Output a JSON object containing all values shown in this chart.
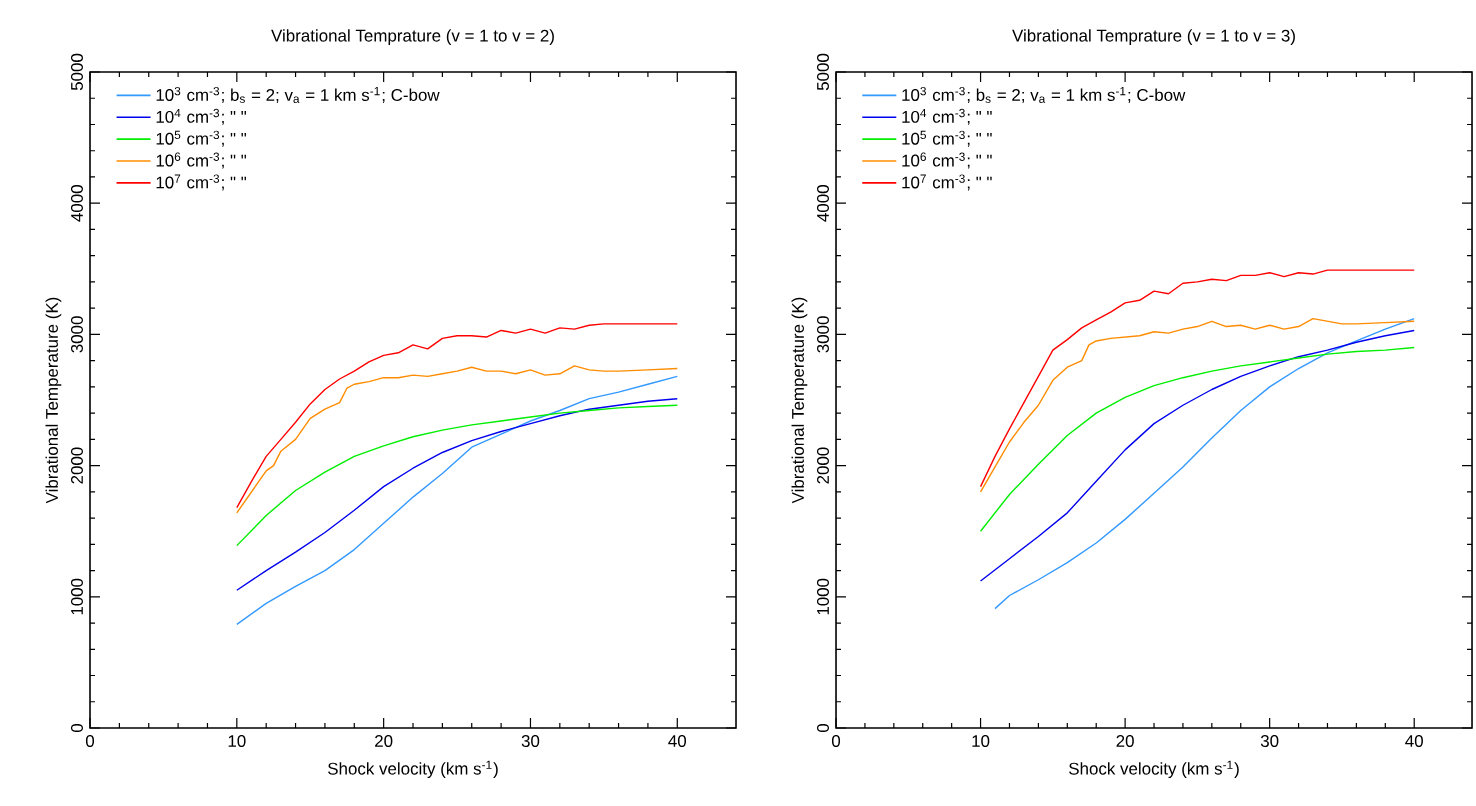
{
  "chart_data": [
    {
      "type": "line",
      "title": "Vibrational Temprature (v = 1 to v = 2)",
      "xlabel": "Shock velocity (km s$^{-1}$)",
      "ylabel": "Vibrational Temperature (K)",
      "xlim": [
        0,
        44
      ],
      "ylim": [
        0,
        5000
      ],
      "xticks": [
        0,
        10,
        20,
        30,
        40
      ],
      "yticks": [
        0,
        1000,
        2000,
        3000,
        4000,
        5000
      ],
      "legend": "top left",
      "series": [
        {
          "name": "10$^{3}$ cm$^{-3}$; b$_{s}$ = 2; v$_{a}$ = 1 km s$^{-1}$; C-bow",
          "color": "#3399ff",
          "x": [
            10,
            12,
            14,
            16,
            18,
            20,
            22,
            24,
            26,
            28,
            30,
            32,
            34,
            36,
            38,
            40
          ],
          "values": [
            790,
            950,
            1080,
            1200,
            1360,
            1560,
            1760,
            1940,
            2140,
            2240,
            2340,
            2420,
            2510,
            2560,
            2620,
            2680
          ]
        },
        {
          "name": "10$^{4}$ cm$^{-3}$; \"          \"",
          "color": "#0000ee",
          "x": [
            10,
            12,
            14,
            16,
            18,
            20,
            22,
            24,
            26,
            28,
            30,
            32,
            34,
            36,
            38,
            40
          ],
          "values": [
            1050,
            1200,
            1340,
            1490,
            1660,
            1840,
            1980,
            2100,
            2190,
            2260,
            2320,
            2380,
            2430,
            2460,
            2490,
            2510
          ]
        },
        {
          "name": "10$^{5}$ cm$^{-3}$; \"          \"",
          "color": "#00ee00",
          "x": [
            10,
            12,
            14,
            16,
            18,
            20,
            22,
            24,
            26,
            28,
            30,
            32,
            34,
            36,
            38,
            40
          ],
          "values": [
            1390,
            1620,
            1810,
            1950,
            2070,
            2150,
            2220,
            2270,
            2310,
            2340,
            2370,
            2400,
            2420,
            2440,
            2450,
            2460
          ]
        },
        {
          "name": "10$^{6}$ cm$^{-3}$; \"          \"",
          "color": "#ff8c00",
          "x": [
            10,
            11,
            12,
            12.5,
            13,
            14,
            15,
            16,
            17,
            17.5,
            18,
            19,
            20,
            21,
            22,
            23,
            24,
            25,
            26,
            27,
            28,
            29,
            30,
            31,
            32,
            33,
            34,
            35,
            36,
            38,
            40
          ],
          "values": [
            1640,
            1800,
            1960,
            2000,
            2110,
            2200,
            2360,
            2430,
            2480,
            2590,
            2620,
            2640,
            2670,
            2670,
            2690,
            2680,
            2700,
            2720,
            2750,
            2720,
            2720,
            2700,
            2730,
            2690,
            2700,
            2760,
            2730,
            2720,
            2720,
            2730,
            2740
          ]
        },
        {
          "name": "10$^{7}$ cm$^{-3}$; \"          \"",
          "color": "#ff0000",
          "x": [
            10,
            11,
            12,
            13,
            14,
            15,
            16,
            17,
            18,
            19,
            20,
            21,
            22,
            23,
            24,
            25,
            26,
            27,
            28,
            29,
            30,
            31,
            32,
            33,
            34,
            35,
            40
          ],
          "values": [
            1680,
            1880,
            2070,
            2200,
            2330,
            2470,
            2580,
            2660,
            2720,
            2790,
            2840,
            2860,
            2920,
            2890,
            2970,
            2990,
            2990,
            2980,
            3030,
            3010,
            3040,
            3010,
            3050,
            3040,
            3070,
            3080,
            3080
          ]
        }
      ]
    },
    {
      "type": "line",
      "title": "Vibrational Temprature (v = 1 to v = 3)",
      "xlabel": "Shock velocity (km s$^{-1}$)",
      "ylabel": "Vibrational Temperature (K)",
      "xlim": [
        0,
        44
      ],
      "ylim": [
        0,
        5000
      ],
      "xticks": [
        0,
        10,
        20,
        30,
        40
      ],
      "yticks": [
        0,
        1000,
        2000,
        3000,
        4000,
        5000
      ],
      "legend": "top left",
      "series": [
        {
          "name": "10$^{3}$ cm$^{-3}$; b$_{s}$ = 2; v$_{a}$ = 1 km s$^{-1}$; C-bow",
          "color": "#3399ff",
          "x": [
            11,
            12,
            14,
            16,
            18,
            20,
            22,
            24,
            26,
            28,
            30,
            32,
            34,
            36,
            38,
            40
          ],
          "values": [
            910,
            1010,
            1130,
            1260,
            1410,
            1590,
            1790,
            1990,
            2210,
            2420,
            2600,
            2740,
            2860,
            2950,
            3040,
            3120
          ]
        },
        {
          "name": "10$^{4}$ cm$^{-3}$; \"          \"",
          "color": "#0000ee",
          "x": [
            10,
            12,
            14,
            16,
            18,
            20,
            22,
            24,
            26,
            28,
            30,
            32,
            34,
            36,
            38,
            40
          ],
          "values": [
            1120,
            1290,
            1460,
            1640,
            1880,
            2120,
            2320,
            2460,
            2580,
            2680,
            2760,
            2830,
            2880,
            2940,
            2990,
            3030
          ]
        },
        {
          "name": "10$^{5}$ cm$^{-3}$; \"          \"",
          "color": "#00ee00",
          "x": [
            10,
            12,
            14,
            16,
            18,
            20,
            22,
            24,
            26,
            28,
            30,
            32,
            34,
            36,
            38,
            40
          ],
          "values": [
            1500,
            1780,
            2010,
            2230,
            2400,
            2520,
            2610,
            2670,
            2720,
            2760,
            2790,
            2820,
            2850,
            2870,
            2880,
            2900
          ]
        },
        {
          "name": "10$^{6}$ cm$^{-3}$; \"          \"",
          "color": "#ff8c00",
          "x": [
            10,
            11,
            12,
            13,
            14,
            15,
            16,
            17,
            17.5,
            18,
            19,
            20,
            21,
            22,
            23,
            24,
            25,
            26,
            27,
            28,
            29,
            30,
            31,
            32,
            33,
            34,
            35,
            36,
            38,
            40
          ],
          "values": [
            1800,
            1990,
            2180,
            2330,
            2460,
            2650,
            2750,
            2800,
            2920,
            2950,
            2970,
            2980,
            2990,
            3020,
            3010,
            3040,
            3060,
            3100,
            3060,
            3070,
            3040,
            3070,
            3040,
            3060,
            3120,
            3100,
            3080,
            3080,
            3090,
            3100
          ]
        },
        {
          "name": "10$^{7}$ cm$^{-3}$; \"          \"",
          "color": "#ff0000",
          "x": [
            10,
            11,
            12,
            13,
            14,
            15,
            16,
            17,
            18,
            19,
            20,
            21,
            22,
            23,
            24,
            25,
            26,
            27,
            28,
            29,
            30,
            31,
            32,
            33,
            34,
            35,
            40
          ],
          "values": [
            1840,
            2070,
            2280,
            2480,
            2680,
            2880,
            2960,
            3050,
            3110,
            3170,
            3240,
            3260,
            3330,
            3310,
            3390,
            3400,
            3420,
            3410,
            3450,
            3450,
            3470,
            3440,
            3470,
            3460,
            3490,
            3490,
            3490
          ]
        }
      ]
    }
  ]
}
